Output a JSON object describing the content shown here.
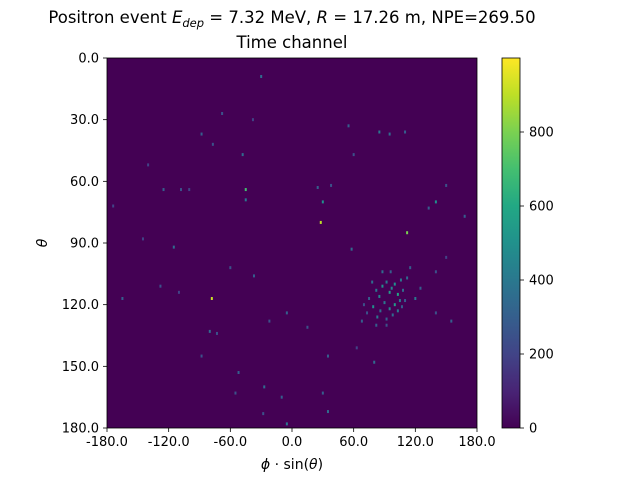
{
  "chart_data": {
    "type": "heatmap",
    "title": {
      "prefix": "Positron event ",
      "edep_symbol": "E",
      "edep_sub": "dep",
      "edep_value": " = 7.32 MeV, ",
      "r_symbol": "R",
      "r_value": " = 17.26 m, NPE=269.50"
    },
    "subtitle": "Time channel",
    "xlabel": {
      "phi": "ϕ",
      "rest": " · sin(",
      "theta": "θ",
      "close": ")"
    },
    "ylabel": "θ",
    "xlim": [
      -180,
      180
    ],
    "ylim": [
      180,
      0
    ],
    "xticks": [
      "-180.0",
      "-120.0",
      "-60.0",
      "0.0",
      "60.0",
      "120.0",
      "180.0"
    ],
    "xtick_values": [
      -180,
      -120,
      -60,
      0,
      60,
      120,
      180
    ],
    "yticks": [
      "0.0",
      "30.0",
      "60.0",
      "90.0",
      "120.0",
      "150.0",
      "180.0"
    ],
    "ytick_values": [
      0,
      30,
      60,
      90,
      120,
      150,
      180
    ],
    "colorbar": {
      "colormap": "viridis",
      "range": [
        0,
        1000
      ],
      "ticks": [
        "0",
        "200",
        "400",
        "600",
        "800"
      ],
      "tick_values": [
        0,
        200,
        400,
        600,
        800
      ]
    },
    "background_value": 0,
    "points": [
      {
        "x": -30,
        "y": 9,
        "v": 350
      },
      {
        "x": -68,
        "y": 27,
        "v": 250
      },
      {
        "x": -38,
        "y": 30,
        "v": 200
      },
      {
        "x": -88,
        "y": 37,
        "v": 300
      },
      {
        "x": -77,
        "y": 42,
        "v": 250
      },
      {
        "x": -48,
        "y": 47,
        "v": 350
      },
      {
        "x": 55,
        "y": 33,
        "v": 300
      },
      {
        "x": 85,
        "y": 36,
        "v": 400
      },
      {
        "x": 95,
        "y": 37,
        "v": 350
      },
      {
        "x": 110,
        "y": 36,
        "v": 300
      },
      {
        "x": 60,
        "y": 47,
        "v": 250
      },
      {
        "x": -140,
        "y": 52,
        "v": 200
      },
      {
        "x": -45,
        "y": 64,
        "v": 700
      },
      {
        "x": -45,
        "y": 69,
        "v": 400
      },
      {
        "x": 25,
        "y": 63,
        "v": 300
      },
      {
        "x": 38,
        "y": 62,
        "v": 250
      },
      {
        "x": -125,
        "y": 64,
        "v": 300
      },
      {
        "x": -108,
        "y": 64,
        "v": 250
      },
      {
        "x": -100,
        "y": 64,
        "v": 200
      },
      {
        "x": 28,
        "y": 80,
        "v": 900
      },
      {
        "x": 30,
        "y": 70,
        "v": 500
      },
      {
        "x": 140,
        "y": 70,
        "v": 500
      },
      {
        "x": 168,
        "y": 77,
        "v": 300
      },
      {
        "x": 150,
        "y": 62,
        "v": 250
      },
      {
        "x": 133,
        "y": 73,
        "v": 300
      },
      {
        "x": -115,
        "y": 92,
        "v": 350
      },
      {
        "x": -145,
        "y": 88,
        "v": 200
      },
      {
        "x": -174,
        "y": 72,
        "v": 200
      },
      {
        "x": 58,
        "y": 93,
        "v": 350
      },
      {
        "x": 112,
        "y": 85,
        "v": 800
      },
      {
        "x": 115,
        "y": 102,
        "v": 300
      },
      {
        "x": 112,
        "y": 107,
        "v": 350
      },
      {
        "x": 140,
        "y": 104,
        "v": 250
      },
      {
        "x": 150,
        "y": 97,
        "v": 200
      },
      {
        "x": -78,
        "y": 117,
        "v": 920
      },
      {
        "x": -165,
        "y": 117,
        "v": 300
      },
      {
        "x": -128,
        "y": 111,
        "v": 250
      },
      {
        "x": -110,
        "y": 114,
        "v": 200
      },
      {
        "x": -37,
        "y": 106,
        "v": 300
      },
      {
        "x": -60,
        "y": 102,
        "v": 250
      },
      {
        "x": -5,
        "y": 124,
        "v": 300
      },
      {
        "x": -22,
        "y": 128,
        "v": 250
      },
      {
        "x": -80,
        "y": 133,
        "v": 350
      },
      {
        "x": -73,
        "y": 134,
        "v": 250
      },
      {
        "x": 15,
        "y": 131,
        "v": 250
      },
      {
        "x": 35,
        "y": 145,
        "v": 300
      },
      {
        "x": 80,
        "y": 148,
        "v": 350
      },
      {
        "x": 63,
        "y": 141,
        "v": 200
      },
      {
        "x": -88,
        "y": 145,
        "v": 250
      },
      {
        "x": -52,
        "y": 153,
        "v": 300
      },
      {
        "x": -27,
        "y": 160,
        "v": 350
      },
      {
        "x": -55,
        "y": 163,
        "v": 250
      },
      {
        "x": -10,
        "y": 165,
        "v": 300
      },
      {
        "x": 30,
        "y": 163,
        "v": 300
      },
      {
        "x": 35,
        "y": 172,
        "v": 350
      },
      {
        "x": -5,
        "y": 178,
        "v": 400
      },
      {
        "x": -28,
        "y": 173,
        "v": 250
      },
      {
        "x": 155,
        "y": 128,
        "v": 300
      },
      {
        "x": 140,
        "y": 124,
        "v": 250
      },
      {
        "x": 120,
        "y": 117,
        "v": 400
      },
      {
        "x": 125,
        "y": 112,
        "v": 300
      },
      {
        "x": 70,
        "y": 120,
        "v": 250
      },
      {
        "x": 68,
        "y": 128,
        "v": 300
      },
      {
        "x": 78,
        "y": 109,
        "v": 350
      },
      {
        "x": 82,
        "y": 113,
        "v": 400
      },
      {
        "x": 85,
        "y": 116,
        "v": 450
      },
      {
        "x": 88,
        "y": 111,
        "v": 500
      },
      {
        "x": 92,
        "y": 109,
        "v": 400
      },
      {
        "x": 95,
        "y": 114,
        "v": 550
      },
      {
        "x": 97,
        "y": 112,
        "v": 450
      },
      {
        "x": 100,
        "y": 110,
        "v": 500
      },
      {
        "x": 103,
        "y": 115,
        "v": 600
      },
      {
        "x": 105,
        "y": 118,
        "v": 400
      },
      {
        "x": 108,
        "y": 113,
        "v": 350
      },
      {
        "x": 100,
        "y": 120,
        "v": 550
      },
      {
        "x": 95,
        "y": 122,
        "v": 450
      },
      {
        "x": 90,
        "y": 119,
        "v": 400
      },
      {
        "x": 86,
        "y": 123,
        "v": 350
      },
      {
        "x": 83,
        "y": 126,
        "v": 400
      },
      {
        "x": 92,
        "y": 127,
        "v": 300
      },
      {
        "x": 98,
        "y": 125,
        "v": 350
      },
      {
        "x": 103,
        "y": 123,
        "v": 400
      },
      {
        "x": 107,
        "y": 121,
        "v": 300
      },
      {
        "x": 79,
        "y": 121,
        "v": 500
      },
      {
        "x": 75,
        "y": 117,
        "v": 300
      },
      {
        "x": 88,
        "y": 104,
        "v": 350
      },
      {
        "x": 96,
        "y": 104,
        "v": 300
      },
      {
        "x": 106,
        "y": 108,
        "v": 400
      },
      {
        "x": 110,
        "y": 118,
        "v": 300
      },
      {
        "x": 92,
        "y": 130,
        "v": 250
      },
      {
        "x": 82,
        "y": 130,
        "v": 300
      },
      {
        "x": 73,
        "y": 124,
        "v": 250
      }
    ]
  }
}
